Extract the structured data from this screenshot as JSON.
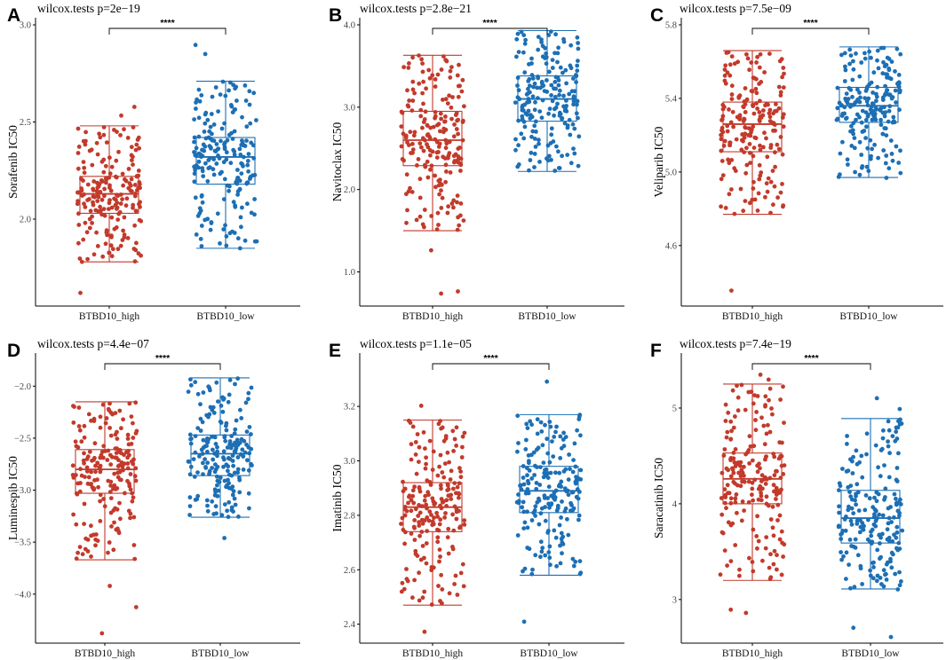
{
  "colors": {
    "high": "#c23a2b",
    "low": "#1d6fb4"
  },
  "chart_data": [
    {
      "type": "box",
      "panel": "A",
      "title": "wilcox.tests p=2e−19",
      "ylabel": "Sorafenib IC50",
      "categories": [
        "BTBD10_high",
        "BTBD10_low"
      ],
      "yticks": [
        2.0,
        2.5,
        3.0
      ],
      "ytick_labels": [
        "2.0",
        "2.5",
        "3.0"
      ],
      "ylim": [
        1.58,
        3.0
      ],
      "significance": "****",
      "series": [
        {
          "name": "BTBD10_high",
          "min": 1.78,
          "q1": 2.03,
          "median": 2.13,
          "q3": 2.22,
          "max": 2.48,
          "n": 200,
          "outliers": [
            1.62
          ],
          "top": 2.58
        },
        {
          "name": "BTBD10_low",
          "min": 1.85,
          "q1": 2.18,
          "median": 2.32,
          "q3": 2.42,
          "max": 2.71,
          "n": 200,
          "outliers": [
            2.85,
            2.9
          ],
          "top": 2.71
        }
      ]
    },
    {
      "type": "box",
      "panel": "B",
      "title": "wilcox.tests p=2.8e−21",
      "ylabel": "Navitoclax IC50",
      "categories": [
        "BTBD10_high",
        "BTBD10_low"
      ],
      "yticks": [
        1.0,
        2.0,
        3.0,
        4.0
      ],
      "ytick_labels": [
        "1.0",
        "2.0",
        "3.0",
        "4.0"
      ],
      "ylim": [
        0.65,
        4.0
      ],
      "significance": "****",
      "series": [
        {
          "name": "BTBD10_high",
          "min": 1.5,
          "q1": 2.29,
          "median": 2.6,
          "q3": 2.95,
          "max": 3.63,
          "n": 200,
          "outliers": [
            1.25,
            0.77,
            0.74
          ],
          "top": 3.63
        },
        {
          "name": "BTBD10_low",
          "min": 2.22,
          "q1": 2.83,
          "median": 3.1,
          "q3": 3.38,
          "max": 3.93,
          "n": 200,
          "outliers": [],
          "top": 3.93
        }
      ]
    },
    {
      "type": "box",
      "panel": "C",
      "title": "wilcox.tests p=7.5e−09",
      "ylabel": "Veliparib IC50",
      "categories": [
        "BTBD10_high",
        "BTBD10_low"
      ],
      "yticks": [
        4.6,
        5.0,
        5.4,
        5.8
      ],
      "ytick_labels": [
        "4.6",
        "5.0",
        "5.4",
        "5.8"
      ],
      "ylim": [
        4.3,
        5.8
      ],
      "significance": "****",
      "series": [
        {
          "name": "BTBD10_high",
          "min": 4.77,
          "q1": 5.11,
          "median": 5.26,
          "q3": 5.38,
          "max": 5.66,
          "n": 200,
          "outliers": [
            4.35
          ],
          "top": 5.66
        },
        {
          "name": "BTBD10_low",
          "min": 4.97,
          "q1": 5.27,
          "median": 5.36,
          "q3": 5.46,
          "max": 5.68,
          "n": 200,
          "outliers": [],
          "top": 5.68
        }
      ]
    },
    {
      "type": "box",
      "panel": "D",
      "title": "wilcox.tests p=4.4e−07",
      "ylabel": "Luminespib IC50",
      "categories": [
        "BTBD10_high",
        "BTBD10_low"
      ],
      "yticks": [
        -4.0,
        -3.5,
        -3.0,
        -2.5,
        -2.0
      ],
      "ytick_labels": [
        "−4.0",
        "−3.5",
        "−3.0",
        "−2.5",
        "−2.0"
      ],
      "ylim": [
        -4.42,
        -1.75
      ],
      "significance": "****",
      "series": [
        {
          "name": "BTBD10_high",
          "min": -3.67,
          "q1": -3.03,
          "median": -2.8,
          "q3": -2.61,
          "max": -2.15,
          "n": 200,
          "outliers": [
            -3.93,
            -4.13,
            -4.37
          ],
          "top": -2.15
        },
        {
          "name": "BTBD10_low",
          "min": -3.26,
          "q1": -2.86,
          "median": -2.65,
          "q3": -2.47,
          "max": -1.92,
          "n": 200,
          "outliers": [
            -3.46
          ],
          "top": -1.92
        }
      ]
    },
    {
      "type": "box",
      "panel": "E",
      "title": "wilcox.tests p=1.1e−05",
      "ylabel": "Imatinib IC50",
      "categories": [
        "BTBD10_high",
        "BTBD10_low"
      ],
      "yticks": [
        2.4,
        2.6,
        2.8,
        3.0,
        3.2
      ],
      "ytick_labels": [
        "2.4",
        "2.6",
        "2.8",
        "3.0",
        "3.2"
      ],
      "ylim": [
        2.35,
        3.37
      ],
      "significance": "****",
      "series": [
        {
          "name": "BTBD10_high",
          "min": 2.47,
          "q1": 2.74,
          "median": 2.83,
          "q3": 2.92,
          "max": 3.15,
          "n": 200,
          "outliers": [
            2.37,
            3.2
          ],
          "top": 3.15
        },
        {
          "name": "BTBD10_low",
          "min": 2.58,
          "q1": 2.81,
          "median": 2.89,
          "q3": 2.98,
          "max": 3.17,
          "n": 200,
          "outliers": [
            2.41,
            3.29
          ],
          "top": 3.17
        }
      ]
    },
    {
      "type": "box",
      "panel": "F",
      "title": "wilcox.tests p=7.4e−19",
      "ylabel": "Saracatinib IC50",
      "categories": [
        "BTBD10_high",
        "BTBD10_low"
      ],
      "yticks": [
        3,
        4,
        5
      ],
      "ytick_labels": [
        "3",
        "4",
        "5"
      ],
      "ylim": [
        2.6,
        5.5
      ],
      "significance": "****",
      "series": [
        {
          "name": "BTBD10_high",
          "min": 3.2,
          "q1": 4.0,
          "median": 4.26,
          "q3": 4.53,
          "max": 5.25,
          "n": 200,
          "outliers": [
            2.85,
            2.9
          ],
          "top": 5.35
        },
        {
          "name": "BTBD10_low",
          "min": 3.11,
          "q1": 3.59,
          "median": 3.85,
          "q3": 4.14,
          "max": 4.89,
          "n": 200,
          "outliers": [
            2.7,
            2.6
          ],
          "top": 5.1
        }
      ]
    }
  ]
}
